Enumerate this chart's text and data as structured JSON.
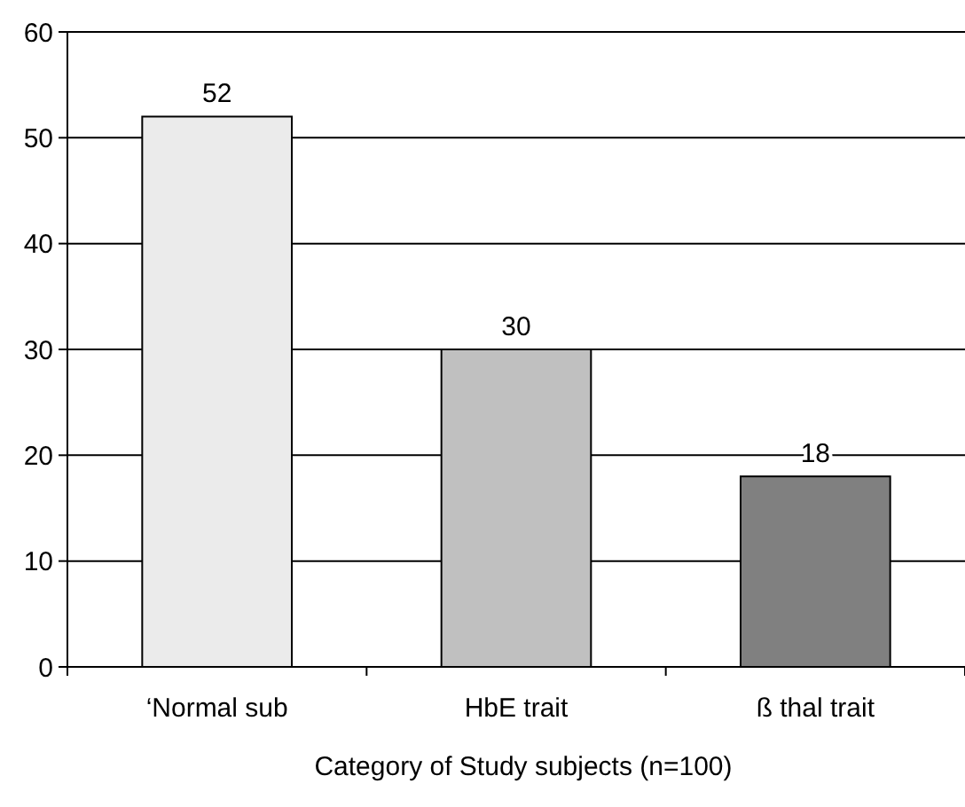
{
  "chart_data": {
    "type": "bar",
    "xlabel": "Category of Study subjects (n=100)",
    "categories": [
      "‘Normal sub",
      "HbE trait",
      "ß thal trait"
    ],
    "values": [
      52,
      30,
      18
    ],
    "colors": [
      "#ebebeb",
      "#c0c0c0",
      "#808080"
    ],
    "ylim": [
      0,
      60
    ],
    "yticks": [
      0,
      10,
      20,
      30,
      40,
      50,
      60
    ],
    "grid": "y",
    "data_labels": true
  }
}
